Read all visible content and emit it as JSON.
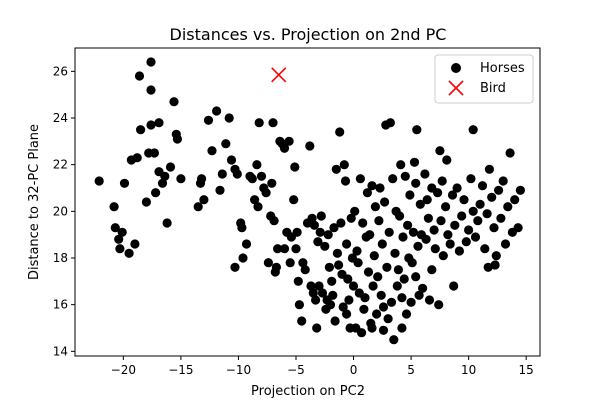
{
  "chart_data": {
    "type": "scatter",
    "title": "Distances vs. Projection on 2nd PC",
    "xlabel": "Projection on PC2",
    "ylabel": "Distance to 32-PC Plane",
    "xlim": [
      -24.2,
      16.2
    ],
    "ylim": [
      13.8,
      27.0
    ],
    "xticks": [
      -20,
      -15,
      -10,
      -5,
      0,
      5,
      10,
      15
    ],
    "yticks": [
      14,
      16,
      18,
      20,
      22,
      24,
      26
    ],
    "grid": false,
    "legend_position": "top-right",
    "series": [
      {
        "name": "Horses",
        "marker": "circle",
        "color": "#000000",
        "points": [
          [
            -22.1,
            21.3
          ],
          [
            -20.8,
            20.2
          ],
          [
            -20.7,
            19.3
          ],
          [
            -20.4,
            18.8
          ],
          [
            -20.3,
            18.4
          ],
          [
            -20.1,
            19.1
          ],
          [
            -19.9,
            21.2
          ],
          [
            -19.5,
            18.2
          ],
          [
            -19.3,
            22.2
          ],
          [
            -19.0,
            18.6
          ],
          [
            -18.8,
            22.3
          ],
          [
            -18.6,
            25.8
          ],
          [
            -18.5,
            23.5
          ],
          [
            -18.0,
            20.4
          ],
          [
            -17.8,
            22.5
          ],
          [
            -17.6,
            26.4
          ],
          [
            -17.6,
            25.2
          ],
          [
            -17.6,
            23.7
          ],
          [
            -17.3,
            22.5
          ],
          [
            -17.2,
            20.8
          ],
          [
            -16.9,
            23.8
          ],
          [
            -16.9,
            21.7
          ],
          [
            -16.6,
            21.2
          ],
          [
            -16.4,
            21.5
          ],
          [
            -16.2,
            19.5
          ],
          [
            -15.9,
            21.9
          ],
          [
            -15.6,
            24.7
          ],
          [
            -15.4,
            23.3
          ],
          [
            -15.3,
            23.1
          ],
          [
            -15.0,
            21.4
          ],
          [
            -13.5,
            20.2
          ],
          [
            -13.3,
            21.2
          ],
          [
            -13.2,
            21.4
          ],
          [
            -13.0,
            20.5
          ],
          [
            -12.6,
            23.9
          ],
          [
            -12.3,
            22.6
          ],
          [
            -11.9,
            24.3
          ],
          [
            -11.6,
            20.9
          ],
          [
            -11.4,
            21.6
          ],
          [
            -11.1,
            22.9
          ],
          [
            -10.8,
            24.0
          ],
          [
            -10.6,
            22.2
          ],
          [
            -10.3,
            21.8
          ],
          [
            -10.1,
            21.6
          ],
          [
            -10.3,
            17.6
          ],
          [
            -9.8,
            19.5
          ],
          [
            -9.7,
            19.3
          ],
          [
            -9.6,
            18.0
          ],
          [
            -9.3,
            18.6
          ],
          [
            -9.0,
            21.5
          ],
          [
            -8.8,
            21.4
          ],
          [
            -8.6,
            20.5
          ],
          [
            -8.4,
            22.0
          ],
          [
            -8.3,
            20.2
          ],
          [
            -8.2,
            23.8
          ],
          [
            -8.0,
            21.5
          ],
          [
            -7.8,
            21.0
          ],
          [
            -7.6,
            20.8
          ],
          [
            -7.4,
            17.8
          ],
          [
            -7.2,
            19.8
          ],
          [
            -7.1,
            21.2
          ],
          [
            -7.0,
            23.8
          ],
          [
            -6.9,
            19.6
          ],
          [
            -6.8,
            17.4
          ],
          [
            -6.6,
            18.4
          ],
          [
            -6.7,
            17.6
          ],
          [
            -6.4,
            23.0
          ],
          [
            -6.2,
            22.9
          ],
          [
            -6.0,
            22.7
          ],
          [
            -5.8,
            19.1
          ],
          [
            -5.6,
            23.0
          ],
          [
            -5.5,
            17.8
          ],
          [
            -5.4,
            18.9
          ],
          [
            -5.2,
            20.5
          ],
          [
            -5.1,
            21.9
          ],
          [
            -5.0,
            18.4
          ],
          [
            -4.9,
            19.1
          ],
          [
            -4.8,
            17.0
          ],
          [
            -4.7,
            16.0
          ],
          [
            -4.5,
            15.3
          ],
          [
            -4.4,
            17.8
          ],
          [
            -4.2,
            17.5
          ],
          [
            -4.0,
            19.5
          ],
          [
            -3.8,
            22.8
          ],
          [
            -3.6,
            19.7
          ],
          [
            -3.5,
            16.5
          ],
          [
            -3.4,
            19.4
          ],
          [
            -3.3,
            16.2
          ],
          [
            -3.2,
            15.0
          ],
          [
            -3.1,
            18.7
          ],
          [
            -3.0,
            16.8
          ],
          [
            -2.9,
            19.1
          ],
          [
            -2.8,
            19.8
          ],
          [
            -2.7,
            16.5
          ],
          [
            -2.5,
            18.5
          ],
          [
            -2.4,
            15.8
          ],
          [
            -2.3,
            16.2
          ],
          [
            -2.2,
            19.0
          ],
          [
            -2.0,
            16.0
          ],
          [
            -1.9,
            17.0
          ],
          [
            -1.8,
            16.4
          ],
          [
            -1.7,
            19.3
          ],
          [
            -1.6,
            15.3
          ],
          [
            -1.5,
            21.8
          ],
          [
            -1.4,
            18.2
          ],
          [
            -1.3,
            17.7
          ],
          [
            -1.2,
            23.4
          ],
          [
            -1.1,
            19.5
          ],
          [
            -1.0,
            17.3
          ],
          [
            -0.9,
            15.9
          ],
          [
            -0.8,
            22.0
          ],
          [
            -0.7,
            21.3
          ],
          [
            -0.6,
            18.6
          ],
          [
            -0.5,
            17.1
          ],
          [
            -0.4,
            16.2
          ],
          [
            -0.3,
            15.0
          ],
          [
            -0.2,
            19.7
          ],
          [
            -0.1,
            18.0
          ],
          [
            0.0,
            16.8
          ],
          [
            0.1,
            20.0
          ],
          [
            0.2,
            15.0
          ],
          [
            0.3,
            18.3
          ],
          [
            0.4,
            17.8
          ],
          [
            0.5,
            16.5
          ],
          [
            0.6,
            21.4
          ],
          [
            0.7,
            14.8
          ],
          [
            0.8,
            19.5
          ],
          [
            0.9,
            15.8
          ],
          [
            1.0,
            16.3
          ],
          [
            1.1,
            18.9
          ],
          [
            1.2,
            20.8
          ],
          [
            1.3,
            17.4
          ],
          [
            1.4,
            19.0
          ],
          [
            1.5,
            15.2
          ],
          [
            1.6,
            21.1
          ],
          [
            1.7,
            16.8
          ],
          [
            1.8,
            18.1
          ],
          [
            1.9,
            20.2
          ],
          [
            2.0,
            15.6
          ],
          [
            2.1,
            17.2
          ],
          [
            2.2,
            19.6
          ],
          [
            2.3,
            21.0
          ],
          [
            2.4,
            16.4
          ],
          [
            2.5,
            18.6
          ],
          [
            2.6,
            15.9
          ],
          [
            2.7,
            20.4
          ],
          [
            2.8,
            23.7
          ],
          [
            2.9,
            17.6
          ],
          [
            3.0,
            15.4
          ],
          [
            3.1,
            19.1
          ],
          [
            3.2,
            23.8
          ],
          [
            3.3,
            16.1
          ],
          [
            3.4,
            21.4
          ],
          [
            3.5,
            14.5
          ],
          [
            3.6,
            18.2
          ],
          [
            3.7,
            20.0
          ],
          [
            3.8,
            16.8
          ],
          [
            3.9,
            17.5
          ],
          [
            4.0,
            19.8
          ],
          [
            4.1,
            22.0
          ],
          [
            4.2,
            16.3
          ],
          [
            4.3,
            18.9
          ],
          [
            4.4,
            17.1
          ],
          [
            4.5,
            21.5
          ],
          [
            4.6,
            15.6
          ],
          [
            4.7,
            19.4
          ],
          [
            4.8,
            18.0
          ],
          [
            4.9,
            20.7
          ],
          [
            5.0,
            16.1
          ],
          [
            5.1,
            17.8
          ],
          [
            5.2,
            19.1
          ],
          [
            5.3,
            22.1
          ],
          [
            5.4,
            21.2
          ],
          [
            5.5,
            23.5
          ],
          [
            5.6,
            18.5
          ],
          [
            5.7,
            16.4
          ],
          [
            5.8,
            20.3
          ],
          [
            5.9,
            19.0
          ],
          [
            6.0,
            16.7
          ],
          [
            6.2,
            21.6
          ],
          [
            6.3,
            18.8
          ],
          [
            6.4,
            20.5
          ],
          [
            6.5,
            19.7
          ],
          [
            6.6,
            16.2
          ],
          [
            6.8,
            21.0
          ],
          [
            7.0,
            19.2
          ],
          [
            7.1,
            18.4
          ],
          [
            7.3,
            20.8
          ],
          [
            7.4,
            16.0
          ],
          [
            7.5,
            22.6
          ],
          [
            7.6,
            19.6
          ],
          [
            7.7,
            21.3
          ],
          [
            7.8,
            18.1
          ],
          [
            8.0,
            20.2
          ],
          [
            8.1,
            22.2
          ],
          [
            8.2,
            19.0
          ],
          [
            8.4,
            18.6
          ],
          [
            8.6,
            20.7
          ],
          [
            8.8,
            19.4
          ],
          [
            9.0,
            21.0
          ],
          [
            9.2,
            18.3
          ],
          [
            9.4,
            19.8
          ],
          [
            9.6,
            20.5
          ],
          [
            9.8,
            18.7
          ],
          [
            10.0,
            19.2
          ],
          [
            10.2,
            21.4
          ],
          [
            10.4,
            20.0
          ],
          [
            10.6,
            18.9
          ],
          [
            10.8,
            19.6
          ],
          [
            11.0,
            20.3
          ],
          [
            11.2,
            21.1
          ],
          [
            11.4,
            18.4
          ],
          [
            11.6,
            19.9
          ],
          [
            11.8,
            21.8
          ],
          [
            12.0,
            20.6
          ],
          [
            12.2,
            19.3
          ],
          [
            12.4,
            18.1
          ],
          [
            12.6,
            20.9
          ],
          [
            12.8,
            19.7
          ],
          [
            13.0,
            21.3
          ],
          [
            13.2,
            18.6
          ],
          [
            13.4,
            20.2
          ],
          [
            13.6,
            22.5
          ],
          [
            13.8,
            19.1
          ],
          [
            14.0,
            20.5
          ],
          [
            14.3,
            19.3
          ],
          [
            14.5,
            20.9
          ],
          [
            12.3,
            17.7
          ],
          [
            11.7,
            17.6
          ],
          [
            10.4,
            23.5
          ],
          [
            8.7,
            16.8
          ],
          [
            6.8,
            17.5
          ],
          [
            5.4,
            17.2
          ],
          [
            4.2,
            15.0
          ],
          [
            2.6,
            14.9
          ],
          [
            1.6,
            15.0
          ],
          [
            -0.6,
            15.6
          ],
          [
            -2.1,
            17.6
          ],
          [
            -3.7,
            16.8
          ],
          [
            -6.0,
            18.4
          ]
        ]
      },
      {
        "name": "Bird",
        "marker": "x",
        "color": "#ff0000",
        "points": [
          [
            -6.5,
            25.85
          ]
        ]
      }
    ]
  }
}
